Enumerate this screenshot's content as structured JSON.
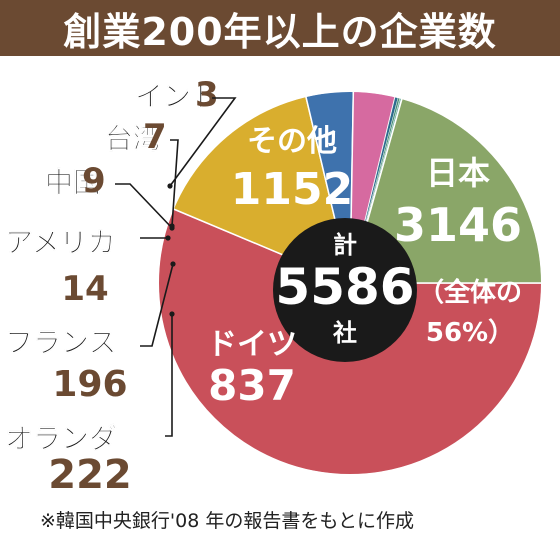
{
  "title": "創業200年以上の企業数",
  "footnote": "※韓国中央銀行'08 年の報告書をもとに作成",
  "colors": {
    "title_bg": "#6b4a32",
    "number_brown": "#6b4a32",
    "日本": "#c9505a",
    "ドイツ": "#d9ae2e",
    "オランダ": "#3e72ad",
    "フランス": "#d66aa0",
    "アメリカ": "#2b6a8c",
    "中国": "#4a8f79",
    "台湾": "#6fb0a0",
    "インド": "#9fd0c4",
    "その他": "#8aa668"
  },
  "chart_data": {
    "type": "pie",
    "title": "創業200年以上の企業数",
    "total": {
      "top": "計",
      "value": "5586",
      "bottom": "社"
    },
    "slices": [
      {
        "label": "日本",
        "value": 3146,
        "value_text": "3146",
        "note": "（全体の56%）",
        "note_lines": [
          "（全体の",
          "56%）"
        ]
      },
      {
        "label": "ドイツ",
        "value": 837,
        "value_text": "837"
      },
      {
        "label": "オランダ",
        "value": 222,
        "value_text": "222"
      },
      {
        "label": "フランス",
        "value": 196,
        "value_text": "196"
      },
      {
        "label": "アメリカ",
        "value": 14,
        "value_text": "14"
      },
      {
        "label": "中国",
        "value": 9,
        "value_text": "9"
      },
      {
        "label": "台湾",
        "value": 7,
        "value_text": "7"
      },
      {
        "label": "インド",
        "value": 3,
        "value_text": "3"
      },
      {
        "label": "その他",
        "value": 1152,
        "value_text": "1152"
      }
    ]
  }
}
